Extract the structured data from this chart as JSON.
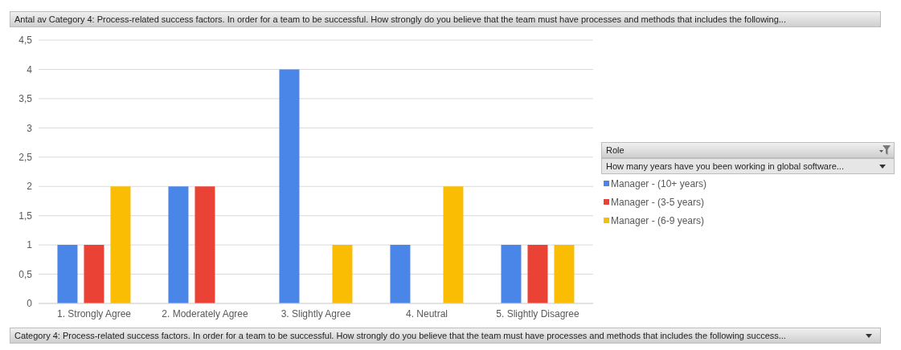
{
  "chart_data": {
    "type": "bar",
    "title": "Antal av Category 4: Process-related success factors. In order for a team to be successful. How strongly do you believe that the team must have processes and methods that includes the following...",
    "xlabel": "Category 4: Process-related success factors. In order for a team to be successful. How strongly do you believe that the team must have processes and methods that includes the following success...",
    "legend_title": "Role",
    "annotations": [
      "How many years have you been working in global software..."
    ],
    "categories": [
      "1. Strongly Agree",
      "2. Moderately Agree",
      "3. Slightly Agree",
      "4. Neutral",
      "5. Slightly Disagree"
    ],
    "series": [
      {
        "name": "Manager - (10+ years)",
        "color": "#4a86e8",
        "values": [
          1,
          2,
          4,
          1,
          1
        ]
      },
      {
        "name": "Manager - (3-5 years)",
        "color": "#ea4335",
        "values": [
          1,
          2,
          null,
          null,
          1
        ]
      },
      {
        "name": "Manager - (6-9 years)",
        "color": "#fbbc04",
        "values": [
          2,
          null,
          1,
          2,
          1
        ]
      }
    ],
    "ylim": [
      0,
      4.5
    ],
    "yticks": [
      0,
      {
        "value": 0.5,
        "label": "0,5"
      },
      1,
      {
        "value": 1.5,
        "label": "1,5"
      },
      2,
      {
        "value": 2.5,
        "label": "2,5"
      },
      3,
      {
        "value": 3.5,
        "label": "3,5"
      },
      4,
      {
        "value": 4.5,
        "label": "4,5"
      }
    ],
    "grid": "y",
    "legend": "right"
  }
}
